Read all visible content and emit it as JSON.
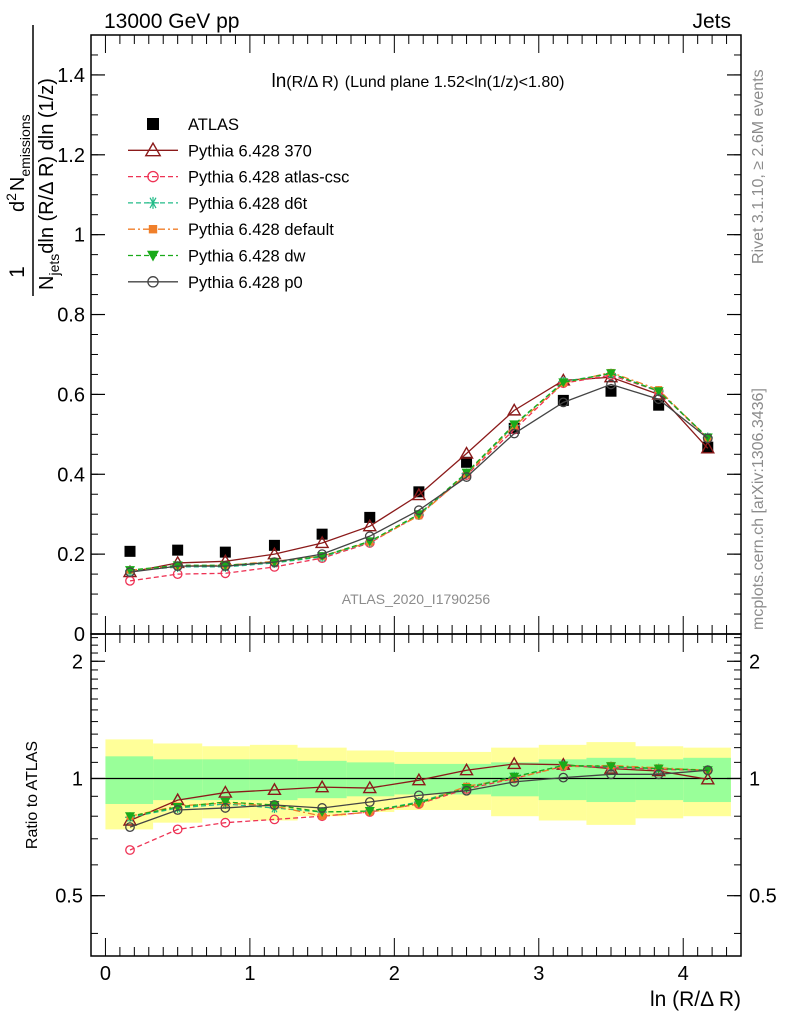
{
  "header": {
    "beam_label": "13000 GeV pp",
    "process_label": "Jets"
  },
  "side_labels": {
    "rivet": "Rivet 3.1.10, ≥ 2.6M events",
    "mcplots": "mcplots.cern.ch [arXiv:1306.3436]"
  },
  "chart_data": [
    {
      "type": "line",
      "title": "ln(R/Δ R) (Lund plane 1.52<ln(1/z)<1.80)",
      "title_parts": {
        "main": "ln",
        "paren": "(R/Δ R)",
        "rest": "(Lund plane 1.52<ln(1/z)<1.80)"
      },
      "watermark": "ATLAS_2020_I1790256",
      "ylabel": {
        "one": "1",
        "njets": "N",
        "njets_sub": "jets",
        "den": "dln (R/Δ R) dln (1/z)",
        "num_d": "d",
        "num_sup": "2",
        "num_n": "N",
        "num_sub": "emissions"
      },
      "xlim": [
        -0.1,
        4.4
      ],
      "ylim": [
        0,
        1.5
      ],
      "y_ticks": [
        0,
        0.2,
        0.4,
        0.6,
        0.8,
        1,
        1.2,
        1.4
      ],
      "y_tick_labels": [
        "0",
        "0.2",
        "0.4",
        "0.6",
        "0.8",
        "1",
        "1.2",
        "1.4"
      ],
      "x": [
        0.17,
        0.5,
        0.83,
        1.17,
        1.5,
        1.83,
        2.17,
        2.5,
        2.83,
        3.17,
        3.5,
        3.83,
        4.17
      ],
      "legend_position": "top-left",
      "series": [
        {
          "name": "ATLAS",
          "color": "#000000",
          "marker": "square",
          "line": "none",
          "values": [
            0.207,
            0.21,
            0.205,
            0.222,
            0.25,
            0.292,
            0.356,
            0.43,
            0.515,
            0.585,
            0.608,
            0.573,
            0.468
          ]
        },
        {
          "name": "Pythia 6.428 370",
          "color": "#8b1a1a",
          "marker": "triangle-open",
          "line": "solid",
          "values": [
            0.155,
            0.178,
            0.182,
            0.2,
            0.228,
            0.27,
            0.348,
            0.452,
            0.56,
            0.635,
            0.643,
            0.6,
            0.465
          ]
        },
        {
          "name": "Pythia 6.428 atlas-csc",
          "color": "#ee3355",
          "marker": "circle-open",
          "line": "dashed",
          "values": [
            0.133,
            0.15,
            0.152,
            0.168,
            0.19,
            0.228,
            0.298,
            0.398,
            0.512,
            0.628,
            0.648,
            0.608,
            0.49
          ]
        },
        {
          "name": "Pythia 6.428 d6t",
          "color": "#22bb88",
          "marker": "star",
          "line": "dashed",
          "values": [
            0.158,
            0.168,
            0.168,
            0.178,
            0.193,
            0.23,
            0.298,
            0.402,
            0.522,
            0.632,
            0.652,
            0.608,
            0.492
          ]
        },
        {
          "name": "Pythia 6.428 default",
          "color": "#f07f2a",
          "marker": "square-small",
          "line": "dashdot",
          "values": [
            0.16,
            0.17,
            0.172,
            0.182,
            0.195,
            0.23,
            0.296,
            0.4,
            0.52,
            0.628,
            0.655,
            0.612,
            0.49
          ]
        },
        {
          "name": "Pythia 6.428 dw",
          "color": "#1aaa1a",
          "marker": "triangle-down",
          "line": "dashed",
          "values": [
            0.16,
            0.172,
            0.172,
            0.18,
            0.195,
            0.232,
            0.3,
            0.404,
            0.525,
            0.63,
            0.653,
            0.608,
            0.492
          ]
        },
        {
          "name": "Pythia 6.428 p0",
          "color": "#444444",
          "marker": "circle-open",
          "line": "solid",
          "values": [
            0.155,
            0.17,
            0.17,
            0.18,
            0.2,
            0.245,
            0.31,
            0.393,
            0.502,
            0.58,
            0.625,
            0.588,
            0.49
          ]
        }
      ]
    },
    {
      "type": "line",
      "xlabel": "ln (R/Δ R)",
      "ylabel": "Ratio to ATLAS",
      "xlim": [
        -0.1,
        4.4
      ],
      "ylim": [
        0.35,
        2.35
      ],
      "x_ticks": [
        0,
        1,
        2,
        3,
        4
      ],
      "x_tick_labels": [
        "0",
        "1",
        "2",
        "3",
        "4"
      ],
      "y_ticks": [
        0.5,
        1,
        2
      ],
      "y_tick_labels": [
        "0.5",
        "1",
        "2"
      ],
      "x": [
        0.17,
        0.5,
        0.83,
        1.17,
        1.5,
        1.83,
        2.17,
        2.5,
        2.83,
        3.17,
        3.5,
        3.83,
        4.17
      ],
      "bin_edges": [
        0,
        0.33,
        0.67,
        1.0,
        1.33,
        1.67,
        2.0,
        2.33,
        2.67,
        3.0,
        3.33,
        3.67,
        4.0,
        4.33
      ],
      "band_stat": [
        0.14,
        0.12,
        0.12,
        0.12,
        0.11,
        0.1,
        0.09,
        0.09,
        0.1,
        0.12,
        0.13,
        0.12,
        0.13
      ],
      "band_total": [
        0.26,
        0.23,
        0.21,
        0.22,
        0.2,
        0.18,
        0.17,
        0.17,
        0.2,
        0.22,
        0.24,
        0.21,
        0.2
      ],
      "band_colors": {
        "total": "#ffff99",
        "stat": "#99ff99"
      },
      "series": [
        {
          "name": "Pythia 6.428 370",
          "color": "#8b1a1a",
          "marker": "triangle-open",
          "line": "solid",
          "values": [
            0.78,
            0.88,
            0.92,
            0.935,
            0.95,
            0.945,
            0.99,
            1.05,
            1.09,
            1.085,
            1.06,
            1.045,
            0.995
          ]
        },
        {
          "name": "Pythia 6.428 atlas-csc",
          "color": "#ee3355",
          "marker": "circle-open",
          "line": "dashed",
          "values": [
            0.655,
            0.74,
            0.77,
            0.785,
            0.8,
            0.82,
            0.86,
            0.94,
            1.0,
            1.075,
            1.07,
            1.055,
            1.05
          ]
        },
        {
          "name": "Pythia 6.428 d6t",
          "color": "#22bb88",
          "marker": "star",
          "line": "dashed",
          "values": [
            0.795,
            0.84,
            0.86,
            0.84,
            0.82,
            0.825,
            0.87,
            0.95,
            1.01,
            1.08,
            1.07,
            1.06,
            1.05
          ]
        },
        {
          "name": "Pythia 6.428 default",
          "color": "#f07f2a",
          "marker": "square-small",
          "line": "dashdot",
          "values": [
            0.8,
            0.85,
            0.865,
            0.85,
            0.8,
            0.82,
            0.86,
            0.955,
            1.0,
            1.075,
            1.08,
            1.065,
            1.05
          ]
        },
        {
          "name": "Pythia 6.428 dw",
          "color": "#1aaa1a",
          "marker": "triangle-down",
          "line": "dashed",
          "values": [
            0.8,
            0.845,
            0.87,
            0.855,
            0.82,
            0.825,
            0.865,
            0.945,
            1.01,
            1.08,
            1.075,
            1.06,
            1.05
          ]
        },
        {
          "name": "Pythia 6.428 p0",
          "color": "#444444",
          "marker": "circle-open",
          "line": "solid",
          "values": [
            0.75,
            0.83,
            0.84,
            0.855,
            0.84,
            0.87,
            0.905,
            0.93,
            0.98,
            1.005,
            1.025,
            1.025,
            1.05
          ]
        }
      ]
    }
  ]
}
